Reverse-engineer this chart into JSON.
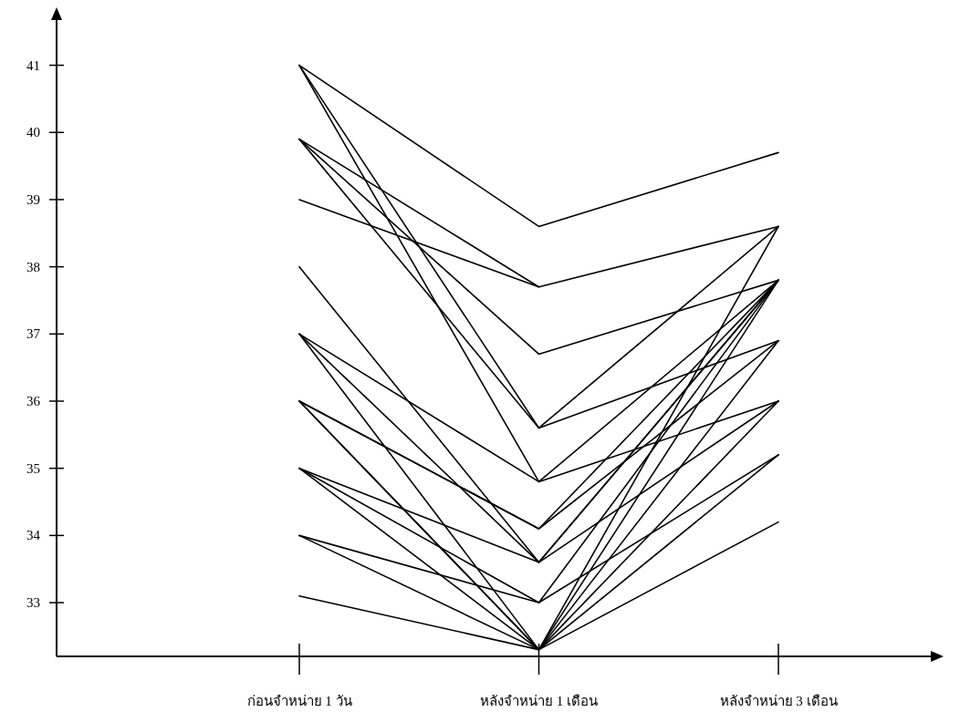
{
  "chart_data": {
    "type": "line",
    "categories": [
      "ก่อนจำหน่าย 1 วัน",
      "หลังจำหน่าย 1 เดือน",
      "หลังจำหน่าย 3 เดือน"
    ],
    "ylim": [
      32.2,
      41.7
    ],
    "yticks": [
      33,
      34,
      35,
      36,
      37,
      38,
      39,
      40,
      41
    ],
    "series": [
      {
        "color": "#000000",
        "values": [
          41,
          38.6,
          39.7
        ]
      },
      {
        "color": "#000000",
        "values": [
          39.9,
          37.7,
          38.6
        ]
      },
      {
        "color": "#000000",
        "values": [
          39,
          37.7,
          null
        ]
      },
      {
        "color": "#000000",
        "values": [
          39.9,
          36.7,
          37.8
        ]
      },
      {
        "color": "#000000",
        "values": [
          39.9,
          35.6,
          38.6
        ]
      },
      {
        "color": "#000000",
        "values": [
          41,
          35.6,
          36.9
        ]
      },
      {
        "color": "#000000",
        "values": [
          41,
          34.8,
          37.8
        ]
      },
      {
        "color": "#000000",
        "values": [
          37,
          34.8,
          36
        ]
      },
      {
        "color": "#000000",
        "values": [
          36,
          34.1,
          37.8
        ]
      },
      {
        "color": "#000000",
        "values": [
          36,
          34.1,
          36.9
        ]
      },
      {
        "color": "#000000",
        "values": [
          38,
          33.6,
          37.8
        ]
      },
      {
        "color": "#000000",
        "values": [
          37,
          33.6,
          36
        ]
      },
      {
        "color": "#000000",
        "values": [
          35,
          33.6,
          37.8
        ]
      },
      {
        "color": "#000000",
        "values": [
          34,
          33,
          35.2
        ]
      },
      {
        "color": "#000000",
        "values": [
          35,
          33,
          37.8
        ]
      },
      {
        "color": "#000000",
        "values": [
          36,
          32.3,
          38.6
        ]
      },
      {
        "color": "#000000",
        "values": [
          37,
          32.3,
          37.8
        ]
      },
      {
        "color": "#000000",
        "values": [
          36,
          32.3,
          36.9
        ]
      },
      {
        "color": "#000000",
        "values": [
          35,
          32.3,
          36
        ]
      },
      {
        "color": "#000000",
        "values": [
          34,
          32.3,
          35.2
        ]
      },
      {
        "color": "#000000",
        "values": [
          33.1,
          32.3,
          34.2
        ]
      }
    ]
  }
}
